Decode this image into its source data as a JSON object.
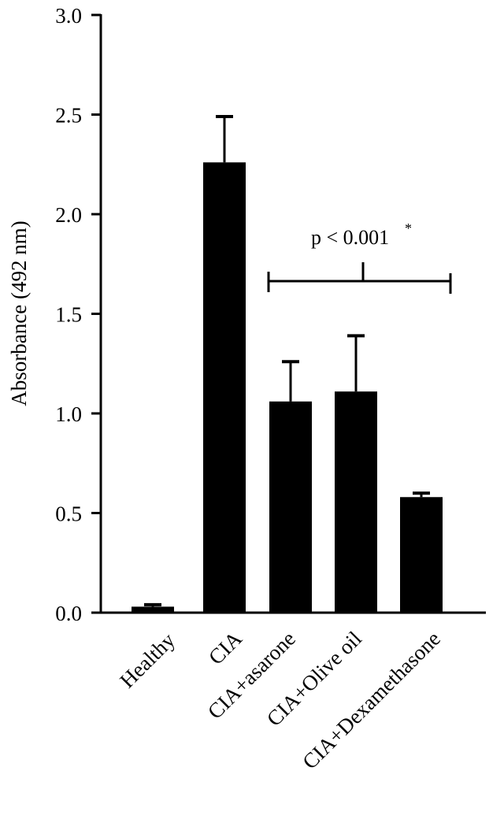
{
  "chart_data": {
    "type": "bar",
    "title": "",
    "xlabel": "",
    "ylabel": "Absorbance (492 nm)",
    "ylim": [
      0,
      3.0
    ],
    "yticks": [
      "0.0",
      "0.5",
      "1.0",
      "1.5",
      "2.0",
      "2.5",
      "3.0"
    ],
    "grid": false,
    "legend": null,
    "categories": [
      "Healthy",
      "CIA",
      "CIA+asarone",
      "CIA+Olive oil",
      "CIA+Dexamethasone"
    ],
    "values": [
      0.03,
      2.26,
      1.06,
      1.11,
      0.58
    ],
    "error_upper": [
      0.01,
      0.23,
      0.2,
      0.28,
      0.02
    ],
    "bar_color": "#000000",
    "annotations": [
      {
        "text": "p < 0.001*",
        "bracket_from": "CIA+asarone",
        "bracket_to": "CIA+Dexamethasone"
      }
    ]
  },
  "labels": {
    "ylabel": "Absorbance (492 nm)",
    "significance": "p < 0.001",
    "significance_mark": "*"
  }
}
